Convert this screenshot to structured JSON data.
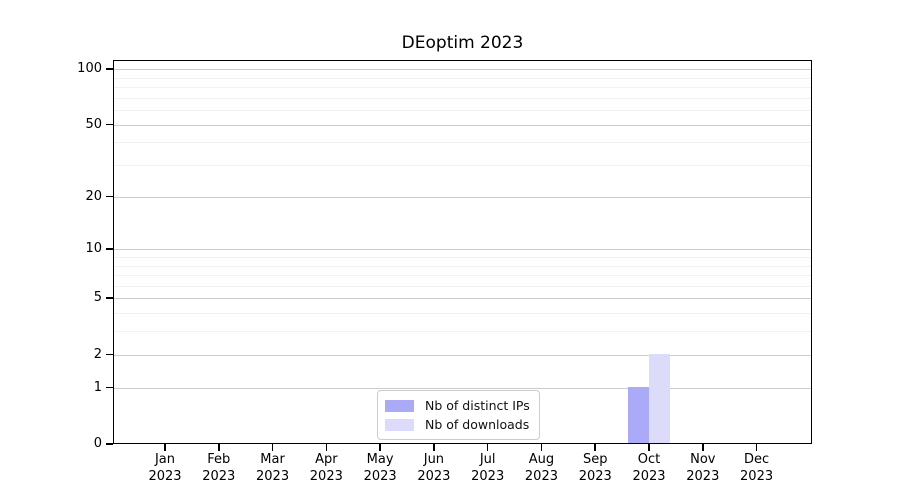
{
  "chart_data": {
    "type": "bar",
    "title": "DEoptim 2023",
    "categories": [
      "Jan 2023",
      "Feb 2023",
      "Mar 2023",
      "Apr 2023",
      "May 2023",
      "Jun 2023",
      "Jul 2023",
      "Aug 2023",
      "Sep 2023",
      "Oct 2023",
      "Nov 2023",
      "Dec 2023"
    ],
    "series": [
      {
        "name": "Nb of distinct IPs",
        "color": "#aaaaf8",
        "values": [
          0,
          0,
          0,
          0,
          0,
          0,
          0,
          0,
          0,
          1,
          0,
          0
        ]
      },
      {
        "name": "Nb of downloads",
        "color": "#dcdcfa",
        "values": [
          0,
          0,
          0,
          0,
          0,
          0,
          0,
          0,
          0,
          2,
          0,
          0
        ]
      }
    ],
    "yticks": [
      0,
      1,
      2,
      5,
      10,
      20,
      50,
      100
    ],
    "minor_gridline_values": [
      3,
      4,
      6,
      7,
      8,
      9,
      30,
      40,
      60,
      70,
      80,
      90
    ],
    "scale": "log1p",
    "ylim": [
      0,
      112
    ],
    "grid": true,
    "legend_position": "lower center",
    "colors": {
      "axis": "#000000",
      "major_grid": "#cccccc",
      "minor_grid": "#f2f2f2",
      "background": "#ffffff"
    }
  }
}
